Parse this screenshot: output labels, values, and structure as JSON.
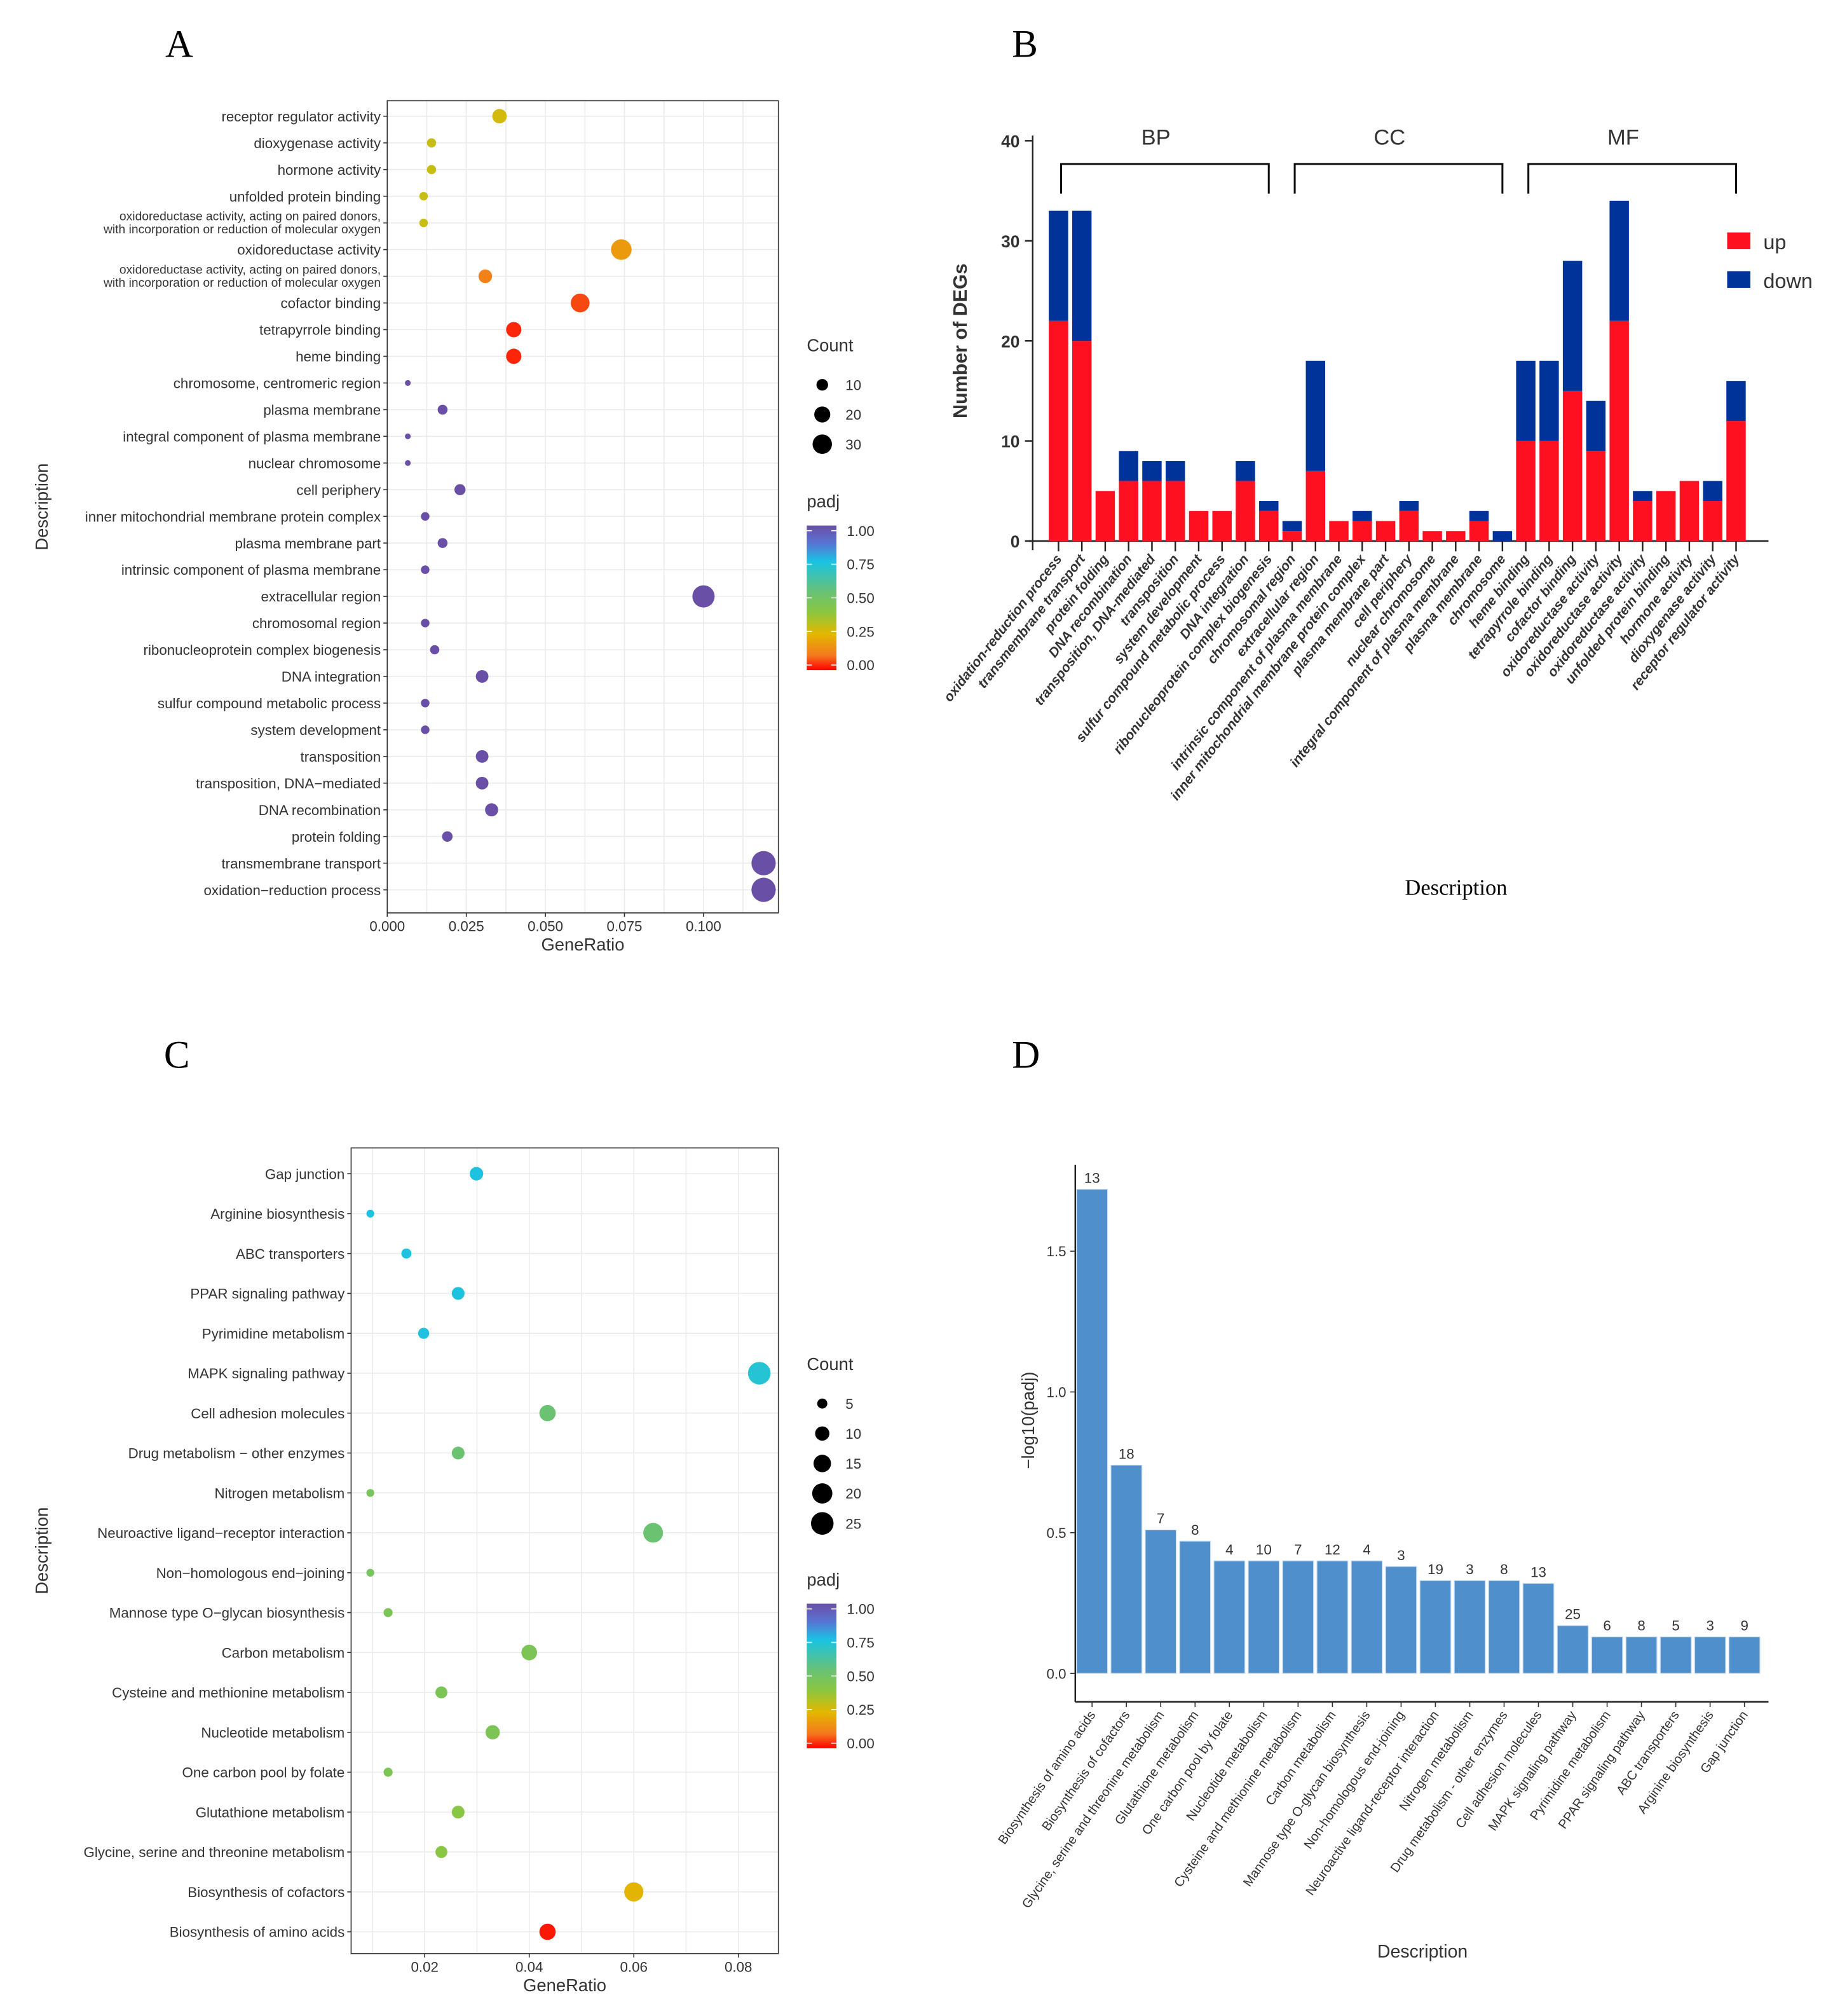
{
  "panel_labels": [
    "A",
    "B",
    "C",
    "D"
  ],
  "chart_data": [
    {
      "type": "scatter",
      "panel": "A",
      "xlabel": "GeneRatio",
      "ylabel": "Description",
      "xlim": [
        0,
        0.123
      ],
      "xticks": [
        "0.000",
        "0.025",
        "0.050",
        "0.075",
        "0.100"
      ],
      "xtick_values": [
        0,
        0.025,
        0.05,
        0.075,
        0.1
      ],
      "categories": [
        "receptor regulator activity",
        "dioxygenase activity",
        "hormone activity",
        "unfolded protein binding",
        "oxidoreductase activity, acting on paired donors,\nwith incorporation or reduction of molecular oxygen",
        "oxidoreductase activity",
        "oxidoreductase activity, acting on paired donors,\nwith incorporation or reduction of molecular oxygen",
        "cofactor binding",
        "tetrapyrrole binding",
        "heme binding",
        "chromosome, centromeric region",
        "plasma membrane",
        "integral component of plasma membrane",
        "nuclear chromosome",
        "cell periphery",
        "inner mitochondrial membrane protein complex",
        "plasma membrane part",
        "intrinsic component of plasma membrane",
        "extracellular region",
        "chromosomal region",
        "ribonucleoprotein complex biogenesis",
        "DNA integration",
        "sulfur compound metabolic process",
        "system development",
        "transposition",
        "transposition, DNA−mediated",
        "DNA recombination",
        "protein folding",
        "transmembrane transport",
        "oxidation−reduction process"
      ],
      "gene_ratio": [
        0.0355,
        0.014,
        0.014,
        0.0115,
        0.0115,
        0.074,
        0.031,
        0.061,
        0.04,
        0.04,
        0.0065,
        0.0175,
        0.0065,
        0.0065,
        0.023,
        0.012,
        0.0175,
        0.012,
        0.1,
        0.012,
        0.015,
        0.03,
        0.012,
        0.012,
        0.03,
        0.03,
        0.033,
        0.019,
        0.119,
        0.119
      ],
      "count": [
        16,
        6,
        6,
        5,
        5,
        34,
        14,
        28,
        18,
        18,
        2,
        7,
        2,
        2,
        9,
        5,
        7,
        5,
        40,
        5,
        6,
        12,
        5,
        5,
        12,
        12,
        13,
        8,
        48,
        48
      ],
      "padj": [
        0.28,
        0.3,
        0.3,
        0.3,
        0.3,
        0.18,
        0.12,
        0.06,
        0.03,
        0.03,
        1,
        1,
        1,
        1,
        1,
        1,
        1,
        1,
        1,
        1,
        1,
        1,
        1,
        1,
        1,
        1,
        1,
        1,
        1,
        1
      ],
      "size_legend": {
        "title": "Count",
        "values": [
          10,
          20,
          30
        ],
        "labels": [
          "10",
          "20",
          "30"
        ]
      },
      "color_legend": {
        "title": "padj",
        "labels": [
          "1.00",
          "0.75",
          "0.50",
          "0.25",
          "0.00"
        ],
        "values": [
          1,
          0.75,
          0.5,
          0.25,
          0
        ]
      },
      "grid": true
    },
    {
      "type": "bar",
      "stacked": true,
      "panel": "B",
      "xlabel": "Description",
      "ylabel": "Number of  DEGs",
      "ylim": [
        0,
        40
      ],
      "yticks": [
        "0",
        "10",
        "20",
        "30",
        "40"
      ],
      "ytick_values": [
        0,
        10,
        20,
        30,
        40
      ],
      "groups": [
        {
          "name": "BP",
          "start": 0,
          "end": 9
        },
        {
          "name": "CC",
          "start": 10,
          "end": 19
        },
        {
          "name": "MF",
          "start": 20,
          "end": 29
        }
      ],
      "categories": [
        "oxidation-reduction process",
        "transmembrane transport",
        "protein folding",
        "DNA recombination",
        "transposition, DNA-mediated",
        "transposition",
        "system development",
        "sulfur compound metabolic process",
        "DNA integration",
        "ribonucleoprotein complex biogenesis",
        "chromosomal region",
        "extracellular region",
        "intrinsic component of plasma membrane",
        "inner mitochondrial membrane protein complex",
        "plasma membrane part",
        "cell periphery",
        "nuclear chromosome",
        "integral component of plasma membrane",
        "plasma membrane",
        "chromosome",
        "heme binding",
        "tetrapyrrole binding",
        "cofactor binding",
        "oxidoreductase activity",
        "oxidoreductase activity",
        "oxidoreductase activity",
        "unfolded protein binding",
        "hormone activity",
        "dioxygenase activity",
        "receptor regulator activity"
      ],
      "series": [
        {
          "name": "up",
          "color": "#ff1020",
          "values": [
            22,
            20,
            5,
            6,
            6,
            6,
            3,
            3,
            6,
            3,
            1,
            7,
            2,
            2,
            2,
            3,
            1,
            1,
            2,
            0,
            10,
            10,
            15,
            9,
            22,
            4,
            5,
            6,
            4,
            12
          ]
        },
        {
          "name": "down",
          "color": "#003399",
          "values": [
            11,
            13,
            0,
            3,
            2,
            2,
            0,
            0,
            2,
            1,
            1,
            11,
            0,
            1,
            0,
            1,
            0,
            0,
            1,
            1,
            8,
            8,
            13,
            5,
            12,
            1,
            0,
            0,
            2,
            4
          ]
        }
      ],
      "legend": "top-right"
    },
    {
      "type": "scatter",
      "panel": "C",
      "xlabel": "GeneRatio",
      "ylabel": "Description",
      "xlim": [
        0.006,
        0.088
      ],
      "xticks": [
        "0.02",
        "0.04",
        "0.06",
        "0.08"
      ],
      "xtick_values": [
        0.02,
        0.04,
        0.06,
        0.08
      ],
      "categories": [
        "Gap junction",
        "Arginine biosynthesis",
        "ABC transporters",
        "PPAR signaling pathway",
        "Pyrimidine metabolism",
        "MAPK signaling pathway",
        "Cell adhesion molecules",
        "Drug metabolism − other enzymes",
        "Nitrogen metabolism",
        "Neuroactive ligand−receptor interaction",
        "Non−homologous end−joining",
        "Mannose type O−glycan biosynthesis",
        "Carbon metabolism",
        "Cysteine and methionine metabolism",
        "Nucleotide metabolism",
        "One carbon pool by folate",
        "Glutathione metabolism",
        "Glycine, serine and threonine metabolism",
        "Biosynthesis of cofactors",
        "Biosynthesis of amino acids"
      ],
      "gene_ratio": [
        0.0299,
        0.0096,
        0.0165,
        0.0264,
        0.0198,
        0.084,
        0.0435,
        0.0264,
        0.0096,
        0.0637,
        0.0096,
        0.013,
        0.04,
        0.0232,
        0.033,
        0.013,
        0.0264,
        0.0232,
        0.06,
        0.0435
      ],
      "count": [
        9,
        3,
        5,
        8,
        6,
        25,
        13,
        8,
        3,
        19,
        3,
        4,
        12,
        7,
        10,
        4,
        8,
        7,
        18,
        13
      ],
      "padj": [
        0.74,
        0.74,
        0.74,
        0.74,
        0.74,
        0.72,
        0.53,
        0.53,
        0.48,
        0.53,
        0.48,
        0.46,
        0.46,
        0.46,
        0.46,
        0.46,
        0.41,
        0.41,
        0.24,
        0.02
      ],
      "size_legend": {
        "title": "Count",
        "values": [
          5,
          10,
          15,
          20,
          25
        ],
        "labels": [
          "5",
          "10",
          "15",
          "20",
          "25"
        ]
      },
      "color_legend": {
        "title": "padj",
        "labels": [
          "1.00",
          "0.75",
          "0.50",
          "0.25",
          "0.00"
        ],
        "values": [
          1,
          0.75,
          0.5,
          0.25,
          0
        ]
      },
      "grid": true
    },
    {
      "type": "bar",
      "panel": "D",
      "xlabel": "Description",
      "ylabel": "−log10(padj)",
      "ylim": [
        -0.06,
        1.8
      ],
      "yticks": [
        "0.0",
        "0.5",
        "1.0",
        "1.5"
      ],
      "ytick_values": [
        0,
        0.5,
        1.0,
        1.5
      ],
      "color": "#4f8fcc",
      "categories": [
        "Biosynthesis of amino acids",
        "Biosynthesis of cofactors",
        "Glycine, serine and threonine metabolism",
        "Glutathione metabolism",
        "One carbon pool by folate",
        "Nucleotide metabolism",
        "Cysteine and methionine metabolism",
        "Carbon metabolism",
        "Mannose type O-glycan biosynthesis",
        "Non-homologous end-joining",
        "Neuroactive ligand-receptor interaction",
        "Nitrogen metabolism",
        "Drug metabolism - other enzymes",
        "Cell adhesion molecules",
        "MAPK signaling pathway",
        "Pyrimidine metabolism",
        "PPAR signaling pathway",
        "ABC transporters",
        "Arginine biosynthesis",
        "Gap junction"
      ],
      "values": [
        1.72,
        0.74,
        0.51,
        0.47,
        0.4,
        0.4,
        0.4,
        0.4,
        0.4,
        0.38,
        0.33,
        0.33,
        0.33,
        0.32,
        0.17,
        0.13,
        0.13,
        0.13,
        0.13,
        0.13
      ],
      "data_labels": [
        "13",
        "18",
        "7",
        "8",
        "4",
        "10",
        "7",
        "12",
        "4",
        "3",
        "19",
        "3",
        "8",
        "13",
        "25",
        "6",
        "8",
        "5",
        "3",
        "9"
      ]
    }
  ]
}
